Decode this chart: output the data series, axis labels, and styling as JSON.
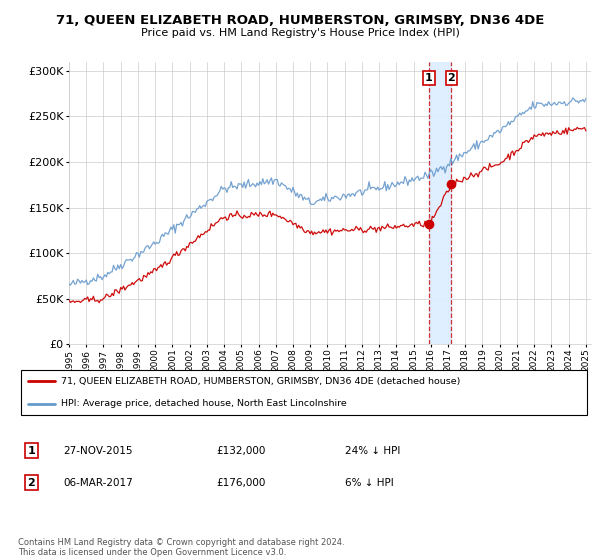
{
  "title": "71, QUEEN ELIZABETH ROAD, HUMBERSTON, GRIMSBY, DN36 4DE",
  "subtitle": "Price paid vs. HM Land Registry's House Price Index (HPI)",
  "ylabel_ticks": [
    "£0",
    "£50K",
    "£100K",
    "£150K",
    "£200K",
    "£250K",
    "£300K"
  ],
  "ytick_values": [
    0,
    50000,
    100000,
    150000,
    200000,
    250000,
    300000
  ],
  "ylim": [
    0,
    310000
  ],
  "red_line_label": "71, QUEEN ELIZABETH ROAD, HUMBERSTON, GRIMSBY, DN36 4DE (detached house)",
  "blue_line_label": "HPI: Average price, detached house, North East Lincolnshire",
  "transaction1_date": "27-NOV-2015",
  "transaction1_price": "£132,000",
  "transaction1_hpi": "24% ↓ HPI",
  "transaction2_date": "06-MAR-2017",
  "transaction2_price": "£176,000",
  "transaction2_hpi": "6% ↓ HPI",
  "footnote": "Contains HM Land Registry data © Crown copyright and database right 2024.\nThis data is licensed under the Open Government Licence v3.0.",
  "red_color": "#cc0000",
  "blue_color": "#6699cc",
  "highlight_box_color": "#ddeeff",
  "transaction1_x": 2015.9,
  "transaction2_x": 2017.2,
  "transaction1_price_val": 132000,
  "transaction2_price_val": 176000
}
